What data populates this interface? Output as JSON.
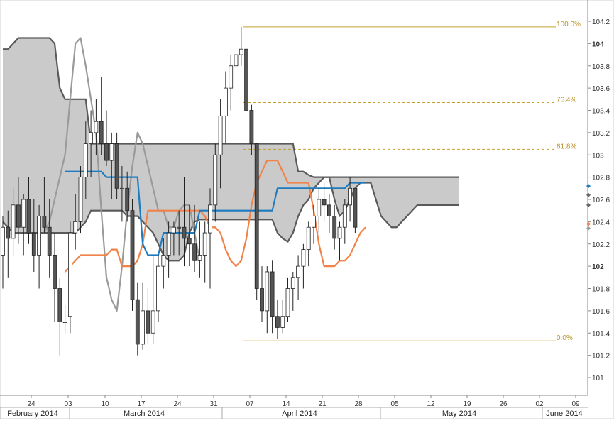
{
  "chart_data": {
    "type": "candlestick",
    "indicator": "ichimoku",
    "title": "",
    "y_axis": {
      "position": "right",
      "ylim": [
        100.85,
        104.25
      ],
      "ticks": [
        "104.2",
        "104",
        "103.8",
        "103.6",
        "103.4",
        "103.2",
        "103",
        "102.8",
        "102.6",
        "102.4",
        "102.2",
        "102",
        "101.8",
        "101.6",
        "101.4",
        "101.2",
        "101"
      ],
      "bold_ticks": [
        "104",
        "102"
      ]
    },
    "x_axis": {
      "day_ticks": [
        "24",
        "03",
        "10",
        "17",
        "24",
        "31",
        "07",
        "14",
        "21",
        "28",
        "05",
        "12",
        "19",
        "26",
        "02",
        "09"
      ],
      "months": [
        "February 2014",
        "March 2014",
        "April 2014",
        "May 2014",
        "June 2014"
      ]
    },
    "fibonacci": {
      "levels": [
        {
          "label": "100.0%",
          "value": 104.15,
          "style": "solid"
        },
        {
          "label": "76.4%",
          "value": 103.47,
          "style": "dashed"
        },
        {
          "label": "61.8%",
          "value": 103.05,
          "style": "dashed"
        },
        {
          "label": "0.0%",
          "value": 101.33,
          "style": "solid"
        }
      ]
    },
    "candles": [
      [
        102.1,
        102.45,
        101.8,
        102.35
      ],
      [
        102.35,
        102.5,
        101.9,
        102.25
      ],
      [
        102.25,
        102.7,
        102.1,
        102.55
      ],
      [
        102.55,
        102.8,
        102.2,
        102.35
      ],
      [
        102.35,
        102.65,
        102.1,
        102.6
      ],
      [
        102.6,
        102.8,
        102.2,
        102.3
      ],
      [
        102.3,
        102.6,
        101.95,
        102.1
      ],
      [
        102.1,
        102.55,
        101.8,
        102.45
      ],
      [
        102.45,
        102.8,
        102.3,
        102.35
      ],
      [
        102.35,
        102.6,
        101.9,
        102.1
      ],
      [
        102.1,
        102.3,
        101.5,
        101.8
      ],
      [
        101.8,
        101.9,
        101.2,
        101.5
      ],
      [
        101.5,
        101.65,
        101.4,
        101.5
      ],
      [
        101.55,
        102.4,
        101.4,
        102.3
      ],
      [
        102.3,
        102.65,
        102.15,
        102.4
      ],
      [
        102.4,
        102.9,
        102.3,
        102.8
      ],
      [
        102.8,
        103.3,
        102.6,
        103.1
      ],
      [
        103.1,
        103.4,
        102.8,
        103.2
      ],
      [
        103.2,
        103.5,
        103.0,
        103.3
      ],
      [
        103.3,
        103.7,
        103.0,
        103.1
      ],
      [
        103.1,
        103.4,
        102.9,
        102.95
      ],
      [
        102.95,
        103.2,
        102.6,
        103.1
      ],
      [
        103.1,
        103.2,
        102.6,
        102.7
      ],
      [
        102.7,
        102.9,
        102.4,
        102.7
      ],
      [
        102.7,
        102.85,
        102.4,
        102.5
      ],
      [
        102.5,
        102.6,
        101.6,
        101.7
      ],
      [
        101.7,
        101.85,
        101.2,
        101.3
      ],
      [
        101.3,
        101.85,
        101.25,
        101.6
      ],
      [
        101.6,
        101.8,
        101.3,
        101.4
      ],
      [
        101.4,
        102.1,
        101.3,
        101.6
      ],
      [
        101.6,
        102.1,
        101.5,
        102.0
      ],
      [
        102.0,
        102.25,
        101.8,
        102.1
      ],
      [
        102.1,
        102.4,
        101.9,
        102.3
      ],
      [
        102.3,
        102.4,
        102.1,
        102.35
      ],
      [
        102.35,
        102.5,
        102.1,
        102.35
      ],
      [
        102.35,
        102.8,
        102.0,
        102.25
      ],
      [
        102.25,
        102.55,
        102.0,
        102.2
      ],
      [
        102.2,
        102.55,
        101.95,
        102.05
      ],
      [
        102.05,
        102.4,
        101.9,
        102.1
      ],
      [
        102.1,
        102.4,
        101.85,
        102.3
      ],
      [
        102.3,
        102.7,
        101.8,
        102.55
      ],
      [
        102.55,
        103.1,
        102.4,
        103.0
      ],
      [
        103.0,
        103.5,
        102.7,
        103.35
      ],
      [
        103.35,
        103.75,
        103.1,
        103.6
      ],
      [
        103.6,
        103.9,
        103.4,
        103.8
      ],
      [
        103.8,
        104.0,
        103.6,
        103.9
      ],
      [
        103.9,
        104.15,
        103.8,
        103.95
      ],
      [
        103.95,
        103.95,
        103.4,
        103.4
      ],
      [
        103.4,
        103.45,
        103.0,
        103.1
      ],
      [
        103.1,
        103.1,
        101.7,
        101.8
      ],
      [
        101.8,
        102.0,
        101.5,
        101.6
      ],
      [
        101.6,
        102.0,
        101.4,
        101.95
      ],
      [
        101.95,
        102.05,
        101.4,
        101.55
      ],
      [
        101.55,
        101.7,
        101.35,
        101.45
      ],
      [
        101.45,
        101.7,
        101.4,
        101.55
      ],
      [
        101.55,
        101.9,
        101.5,
        101.8
      ],
      [
        101.8,
        101.95,
        101.6,
        101.9
      ],
      [
        101.9,
        102.1,
        101.7,
        102.0
      ],
      [
        102.0,
        102.2,
        101.8,
        102.15
      ],
      [
        102.15,
        102.4,
        102.0,
        102.35
      ],
      [
        102.35,
        102.55,
        102.2,
        102.45
      ],
      [
        102.45,
        102.7,
        102.3,
        102.6
      ],
      [
        102.6,
        102.75,
        102.4,
        102.55
      ],
      [
        102.55,
        102.65,
        102.3,
        102.45
      ],
      [
        102.45,
        102.55,
        102.15,
        102.25
      ],
      [
        102.25,
        102.4,
        102.05,
        102.35
      ],
      [
        102.35,
        102.6,
        102.2,
        102.55
      ],
      [
        102.55,
        102.8,
        102.4,
        102.7
      ],
      [
        102.7,
        102.7,
        102.3,
        102.35
      ]
    ],
    "series": [
      {
        "key": "tenkan",
        "color": "#f0824a",
        "values": [
          101.95,
          102.0,
          102.05,
          102.1,
          102.1,
          102.1,
          102.1,
          102.1,
          102.1,
          102.15,
          102.15,
          102.0,
          102.0,
          102.0,
          102.05,
          102.2,
          102.5,
          102.5,
          102.5,
          102.5,
          102.5,
          102.5,
          102.5,
          102.5,
          102.5,
          102.5,
          102.5,
          102.45,
          102.35,
          102.35,
          102.3,
          102.15,
          102.05,
          102.0,
          102.05,
          102.25,
          102.55,
          102.75,
          102.85,
          102.95,
          102.95,
          102.95,
          102.85,
          102.75,
          102.75,
          102.75,
          102.75,
          102.75,
          102.5,
          102.2,
          102.0,
          102.0,
          102.0,
          102.05,
          102.05,
          102.1,
          102.2,
          102.3,
          102.35
        ]
      },
      {
        "key": "kijun",
        "color": "#1e7bbf",
        "values": [
          102.85,
          102.85,
          102.85,
          102.85,
          102.85,
          102.85,
          102.85,
          102.85,
          102.8,
          102.8,
          102.8,
          102.8,
          102.8,
          102.8,
          102.8,
          102.2,
          102.1,
          102.1,
          102.1,
          102.3,
          102.3,
          102.3,
          102.3,
          102.3,
          102.3,
          102.3,
          102.5,
          102.5,
          102.5,
          102.5,
          102.5,
          102.5,
          102.5,
          102.5,
          102.5,
          102.5,
          102.5,
          102.5,
          102.5,
          102.5,
          102.5,
          102.7,
          102.7,
          102.7,
          102.7,
          102.7,
          102.7,
          102.7,
          102.7,
          102.7,
          102.7,
          102.7,
          102.7,
          102.7,
          102.7,
          102.75,
          102.75,
          102.75,
          102.75
        ]
      },
      {
        "key": "chikou",
        "color": "#999999",
        "values": [
          102.3,
          102.4,
          102.6,
          102.8,
          103.0,
          103.5,
          104.0,
          104.05,
          103.8,
          103.5,
          103.2,
          102.5,
          101.9,
          101.7,
          101.6,
          102.0,
          102.5,
          102.9,
          103.2,
          103.1,
          102.9,
          102.7,
          102.5,
          102.5,
          102.35,
          102.35,
          102.5,
          102.55,
          102.55,
          102.3,
          102.05
        ]
      },
      {
        "key": "senkou_a",
        "color": "#999999",
        "values": [
          101.95,
          102.0,
          102.05,
          102.1,
          102.1,
          102.1,
          102.1,
          102.1,
          102.1,
          102.15,
          102.15,
          102.0,
          102.0,
          102.0,
          102.05,
          102.2,
          102.5,
          102.5,
          102.5,
          102.5,
          102.5,
          102.5,
          102.5,
          102.5,
          102.5,
          102.5,
          102.5,
          102.45,
          102.35,
          102.35,
          102.3,
          102.15,
          102.05,
          102.0,
          102.05,
          102.25,
          102.55,
          102.75,
          102.85,
          102.95,
          102.95,
          102.95,
          102.85,
          102.75,
          102.75,
          102.75,
          102.75,
          102.75,
          102.5,
          102.2,
          102.0,
          102.0,
          102.0,
          102.05,
          102.05,
          102.1,
          102.2,
          102.3,
          102.35,
          102.5,
          102.55,
          102.6,
          102.65,
          102.7,
          102.72,
          102.75,
          102.78,
          102.8,
          102.82,
          102.8,
          102.8,
          102.8,
          102.8,
          102.8,
          102.8,
          102.7,
          102.6,
          102.55,
          102.5,
          102.45,
          102.45,
          102.5,
          102.6,
          102.65,
          102.7,
          102.7,
          102.7,
          102.7,
          102.7
        ]
      },
      {
        "key": "senkou_b",
        "color": "#666666",
        "values": [
          103.95,
          103.95,
          104.0,
          104.05,
          104.05,
          104.05,
          104.05,
          104.05,
          104.05,
          104.05,
          104.0,
          103.6,
          103.5,
          103.5,
          103.5,
          103.5,
          103.5,
          103.1,
          103.1,
          103.1,
          103.1,
          103.1,
          103.1,
          103.1,
          103.1,
          103.1,
          103.1,
          103.1,
          103.1,
          103.1,
          103.1,
          103.1,
          103.1,
          103.1,
          103.1,
          103.1,
          103.1,
          103.1,
          103.1,
          103.1,
          103.1,
          103.1,
          103.1,
          103.1,
          103.1,
          103.1,
          103.1,
          103.1,
          103.1,
          103.1,
          103.1,
          103.1,
          103.1,
          103.1,
          103.1,
          103.1,
          103.1,
          102.85,
          102.85,
          102.82,
          102.8,
          102.8,
          102.8,
          102.8,
          102.8,
          102.8,
          102.8,
          102.8,
          102.8,
          102.8,
          102.8,
          102.8,
          102.8,
          102.8,
          102.8,
          102.8,
          102.8,
          102.8,
          102.8,
          102.8,
          102.8,
          102.8,
          102.8,
          102.8,
          102.8,
          102.8,
          102.8,
          102.8,
          102.8
        ]
      }
    ],
    "cloud_lower": [
      102.4,
      102.35,
      102.3,
      102.3,
      102.3,
      102.3,
      102.3,
      102.3,
      102.3,
      102.3,
      102.3,
      102.3,
      102.3,
      102.3,
      102.3,
      102.35,
      102.4,
      102.5,
      102.5,
      102.5,
      102.5,
      102.5,
      102.5,
      102.5,
      102.45,
      102.45,
      102.45,
      102.4,
      102.35,
      102.3,
      102.2,
      102.1,
      102.05,
      102.05,
      102.05,
      102.1,
      102.3,
      102.4,
      102.42,
      102.42,
      102.42,
      102.42,
      102.42,
      102.42,
      102.42,
      102.42,
      102.42,
      102.42,
      102.42,
      102.42,
      102.42,
      102.42,
      102.42,
      102.3,
      102.25,
      102.22,
      102.3,
      102.45,
      102.55,
      102.6,
      102.7,
      102.75,
      102.8,
      102.8,
      102.6,
      102.45,
      102.5,
      102.6,
      102.7,
      102.75,
      102.75,
      102.75,
      102.6,
      102.45,
      102.4,
      102.35,
      102.35,
      102.4,
      102.45,
      102.5,
      102.55,
      102.55,
      102.55,
      102.55,
      102.55,
      102.55,
      102.55,
      102.55,
      102.55
    ],
    "right_markers": [
      {
        "value": 102.72,
        "color": "#1e7bbf"
      },
      {
        "value": 102.64,
        "color": "#666666"
      },
      {
        "value": 102.55,
        "color": "#666666"
      },
      {
        "value": 102.38,
        "color": "#f0824a"
      },
      {
        "value": 102.34,
        "color": "#999999"
      }
    ]
  }
}
